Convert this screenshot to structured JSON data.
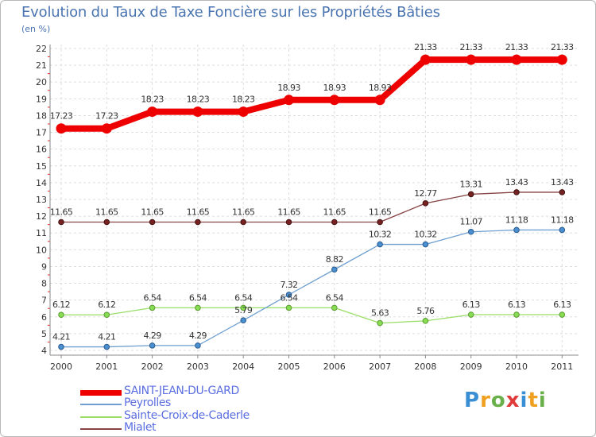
{
  "chart_data": {
    "type": "line",
    "title": "Evolution du Taux de Taxe Foncière sur les Propriétés Bâties",
    "ylabel": "(en %)",
    "xlabel": "",
    "ylim": [
      4,
      22
    ],
    "y_ticks": [
      4,
      5,
      6,
      7,
      8,
      9,
      10,
      11,
      12,
      13,
      14,
      15,
      16,
      17,
      18,
      19,
      20,
      21,
      22
    ],
    "categories": [
      "2000",
      "2001",
      "2002",
      "2003",
      "2004",
      "2005",
      "2006",
      "2007",
      "2008",
      "2009",
      "2010",
      "2011"
    ],
    "grid": true,
    "legend_position": "bottom-left",
    "series": [
      {
        "name": "SAINT-JEAN-DU-GARD",
        "color": "#ee0000",
        "values": [
          17.23,
          17.23,
          18.23,
          18.23,
          18.23,
          18.93,
          18.93,
          18.93,
          21.33,
          21.33,
          21.33,
          21.33
        ],
        "labels": [
          "17.23",
          "17.23",
          "18.23",
          "18.23",
          "18.23",
          "18.93",
          "18.93",
          "18.93",
          "21.33",
          "21.33",
          "21.33",
          "21.33"
        ]
      },
      {
        "name": "Peyrolles",
        "color": "#6e9fd0",
        "values": [
          4.21,
          4.21,
          4.29,
          4.29,
          5.79,
          7.32,
          8.82,
          10.32,
          10.32,
          11.07,
          11.18,
          11.18
        ],
        "labels": [
          "4.21",
          "4.21",
          "4.29",
          "4.29",
          "5.79",
          "7.32",
          "8.82",
          "10.32",
          "10.32",
          "11.07",
          "11.18",
          "11.18"
        ]
      },
      {
        "name": "Sainte-Croix-de-Caderle",
        "color": "#99dd66",
        "values": [
          6.12,
          6.12,
          6.54,
          6.54,
          6.54,
          6.54,
          6.54,
          5.63,
          5.76,
          6.13,
          6.13,
          6.13
        ],
        "labels": [
          "6.12",
          "6.12",
          "6.54",
          "6.54",
          "6.54",
          "6.54",
          "6.54",
          "5.63",
          "5.76",
          "6.13",
          "6.13",
          "6.13"
        ]
      },
      {
        "name": "Mialet",
        "color": "#884444",
        "values": [
          11.65,
          11.65,
          11.65,
          11.65,
          11.65,
          11.65,
          11.65,
          11.65,
          12.77,
          13.31,
          13.43,
          13.43
        ],
        "labels": [
          "11.65",
          "11.65",
          "11.65",
          "11.65",
          "11.65",
          "11.65",
          "11.65",
          "11.65",
          "12.77",
          "13.31",
          "13.43",
          "13.43"
        ]
      }
    ]
  },
  "brand": {
    "letters": [
      "P",
      "r",
      "o",
      "x",
      "i",
      "t",
      "i"
    ],
    "colors": [
      "#3a8fd4",
      "#f0a020",
      "#6ab04a",
      "#e03a3a",
      "#3a8fd4",
      "#f0a020",
      "#6ab04a"
    ]
  }
}
